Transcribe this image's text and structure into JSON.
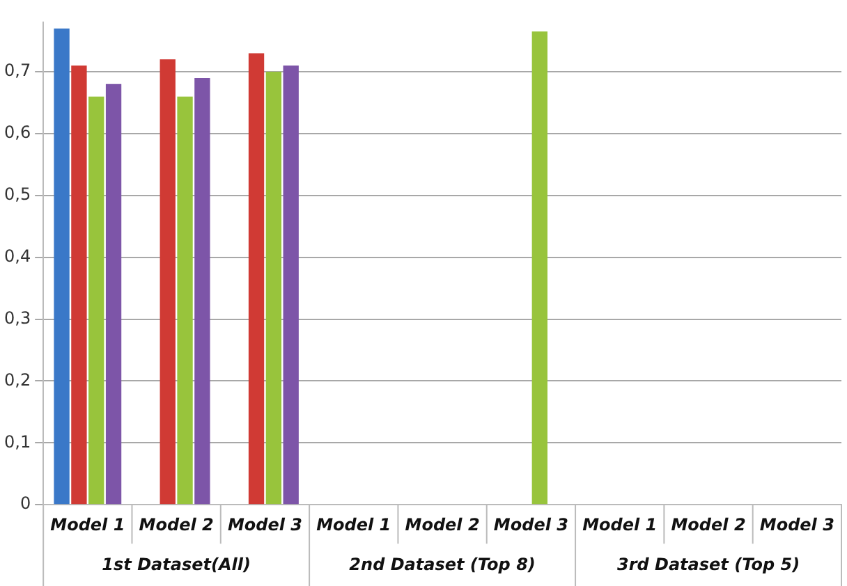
{
  "chart_data": {
    "type": "bar",
    "categories": [
      "Model 1",
      "Model 2",
      "Model 3",
      "Model 1",
      "Model 2",
      "Model 3",
      "Model 1",
      "Model 2",
      "Model 3"
    ],
    "series": [
      {
        "color": "#3a78c8",
        "values": [
          0.77,
          null,
          null,
          null,
          null,
          null,
          null,
          null,
          null
        ]
      },
      {
        "color": "#d03a34",
        "values": [
          0.71,
          0.72,
          0.73,
          null,
          null,
          null,
          null,
          null,
          null
        ]
      },
      {
        "color": "#98c43c",
        "values": [
          0.66,
          0.66,
          0.7,
          null,
          null,
          0.765,
          null,
          null,
          null
        ]
      },
      {
        "color": "#7d55a8",
        "values": [
          0.68,
          0.69,
          0.71,
          null,
          null,
          null,
          null,
          null,
          null
        ]
      }
    ],
    "ylim": [
      0,
      0.78
    ],
    "yticks": [
      0,
      {
        "value": 0.1,
        "label": "0,1"
      },
      {
        "value": 0.2,
        "label": "0,2"
      },
      {
        "value": 0.3,
        "label": "0,3"
      },
      {
        "value": 0.4,
        "label": "0,4"
      },
      {
        "value": 0.5,
        "label": "0,5"
      },
      {
        "value": 0.6,
        "label": "0,6"
      },
      {
        "value": 0.7,
        "label": "0,7"
      }
    ],
    "annotations": [
      "1st Dataset(All)",
      "2nd Dataset (Top 8)",
      "3rd Dataset (Top 5)"
    ],
    "grid": "y",
    "legend": false
  }
}
